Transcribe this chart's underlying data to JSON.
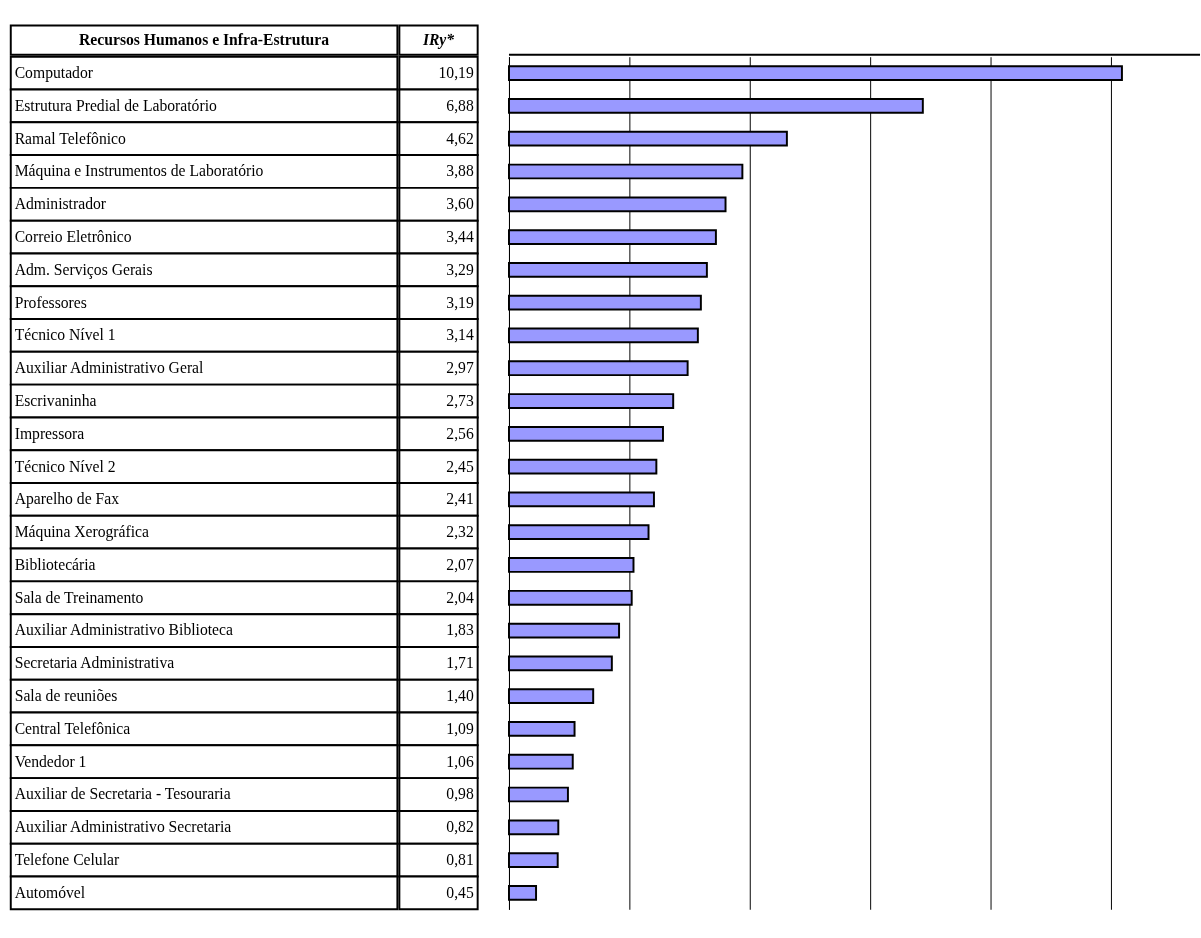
{
  "chart_data": {
    "type": "bar",
    "orientation": "horizontal",
    "ylabel": "Recursos Humanos e Infra-Estrutura",
    "xlabel": "IRy*",
    "categories": [
      "Computador",
      "Estrutura Predial de Laboratório",
      "Ramal Telefônico",
      "Máquina e Instrumentos de Laboratório",
      "Administrador",
      "Correio Eletrônico",
      "Adm. Serviços Gerais",
      "Professores",
      "Técnico Nível 1",
      "Auxiliar Administrativo Geral",
      "Escrivaninha",
      "Impressora",
      "Técnico Nível 2",
      "Aparelho de Fax",
      "Máquina Xerográfica",
      "Bibliotecária",
      "Sala de Treinamento",
      "Auxiliar Administrativo Biblioteca",
      "Secretaria Administrativa",
      "Sala de reuniões",
      "Central Telefônica",
      "Vendedor 1",
      "Auxiliar de Secretaria - Tesouraria",
      "Auxiliar Administrativo Secretaria",
      "Telefone Celular",
      "Automóvel"
    ],
    "values": [
      10.19,
      6.88,
      4.62,
      3.88,
      3.6,
      3.44,
      3.29,
      3.19,
      3.14,
      2.97,
      2.73,
      2.56,
      2.45,
      2.41,
      2.32,
      2.07,
      2.04,
      1.83,
      1.71,
      1.4,
      1.09,
      1.06,
      0.98,
      0.82,
      0.81,
      0.45
    ],
    "value_labels": [
      "10,19",
      "6,88",
      "4,62",
      "3,88",
      "3,60",
      "3,44",
      "3,29",
      "3,19",
      "3,14",
      "2,97",
      "2,73",
      "2,56",
      "2,45",
      "2,41",
      "2,32",
      "2,07",
      "2,04",
      "1,83",
      "1,71",
      "1,40",
      "1,09",
      "1,06",
      "0,98",
      "0,82",
      "0,81",
      "0,45"
    ],
    "color": "#9999ff",
    "grid": "x",
    "tick_labels": "y"
  }
}
